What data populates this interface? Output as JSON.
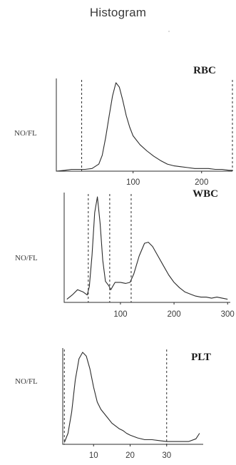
{
  "page": {
    "title": "Histogram"
  },
  "chart_data": [
    {
      "type": "line",
      "title": "RBC",
      "ylabel": "NO/FL",
      "xlim": [
        -12,
        245
      ],
      "ylim": [
        0,
        1.0
      ],
      "ticks": [
        100,
        200
      ],
      "tick_labels": [
        "100",
        "200"
      ],
      "markers": [
        25,
        245
      ],
      "x": [
        -12,
        0,
        10,
        20,
        30,
        40,
        50,
        55,
        60,
        65,
        70,
        75,
        80,
        85,
        90,
        95,
        100,
        110,
        120,
        130,
        140,
        150,
        160,
        170,
        180,
        190,
        200,
        210,
        220,
        230,
        240,
        245
      ],
      "y": [
        0.0,
        0.01,
        0.02,
        0.02,
        0.02,
        0.03,
        0.08,
        0.18,
        0.38,
        0.62,
        0.85,
        1.0,
        0.95,
        0.8,
        0.63,
        0.5,
        0.4,
        0.3,
        0.23,
        0.17,
        0.12,
        0.08,
        0.06,
        0.05,
        0.04,
        0.03,
        0.03,
        0.03,
        0.02,
        0.02,
        0.01,
        0.01
      ]
    },
    {
      "type": "line",
      "title": "WBC",
      "ylabel": "NO/FL",
      "xlim": [
        -5,
        305
      ],
      "ylim": [
        0,
        1.0
      ],
      "ticks": [
        100,
        200,
        300
      ],
      "tick_labels": [
        "100",
        "200",
        "300"
      ],
      "markers": [
        40,
        80,
        120
      ],
      "x": [
        0,
        10,
        20,
        30,
        38,
        42,
        47,
        52,
        57,
        62,
        67,
        72,
        78,
        82,
        90,
        100,
        110,
        118,
        125,
        135,
        145,
        152,
        160,
        170,
        180,
        190,
        200,
        210,
        220,
        230,
        240,
        250,
        260,
        270,
        280,
        290,
        300
      ],
      "y": [
        0.03,
        0.07,
        0.12,
        0.1,
        0.07,
        0.15,
        0.45,
        0.85,
        1.0,
        0.75,
        0.4,
        0.2,
        0.16,
        0.12,
        0.19,
        0.19,
        0.18,
        0.19,
        0.27,
        0.44,
        0.56,
        0.57,
        0.53,
        0.44,
        0.35,
        0.26,
        0.19,
        0.14,
        0.1,
        0.08,
        0.06,
        0.05,
        0.05,
        0.04,
        0.05,
        0.04,
        0.03
      ]
    },
    {
      "type": "line",
      "title": "PLT",
      "ylabel": "NO/FL",
      "xlim": [
        0,
        40
      ],
      "ylim": [
        0,
        1.0
      ],
      "ticks": [
        10,
        20,
        30
      ],
      "tick_labels": [
        "10",
        "20",
        "30"
      ],
      "markers": [
        2,
        30
      ],
      "x": [
        2,
        3,
        4,
        5,
        6,
        7,
        8,
        9,
        10,
        11,
        12,
        13,
        14,
        15,
        16,
        17,
        18,
        19,
        20,
        22,
        24,
        26,
        28,
        30,
        32,
        34,
        36,
        38,
        39
      ],
      "y": [
        0.02,
        0.12,
        0.35,
        0.7,
        0.93,
        1.0,
        0.96,
        0.82,
        0.62,
        0.46,
        0.38,
        0.33,
        0.28,
        0.23,
        0.2,
        0.17,
        0.15,
        0.12,
        0.1,
        0.07,
        0.05,
        0.05,
        0.04,
        0.03,
        0.03,
        0.03,
        0.03,
        0.06,
        0.12
      ]
    }
  ]
}
